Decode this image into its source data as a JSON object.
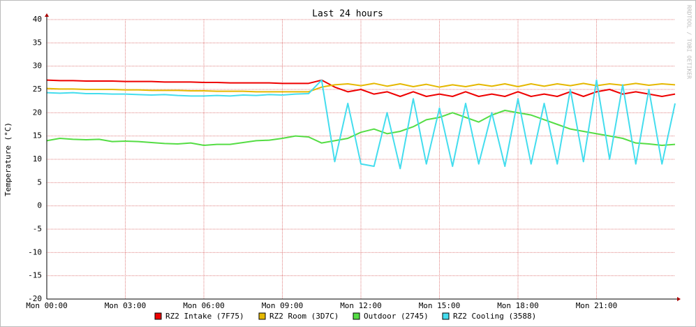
{
  "chart_data": {
    "type": "line",
    "title": "Last 24 hours",
    "y_label": "Temperature (°C)",
    "watermark": "RRDTOOL / TOBI OETIKER",
    "x": [
      0,
      0.5,
      1,
      1.5,
      2,
      2.5,
      3,
      3.5,
      4,
      4.5,
      5,
      5.5,
      6,
      6.5,
      7,
      7.5,
      8,
      8.5,
      9,
      9.5,
      10,
      10.5,
      11,
      11.5,
      12,
      12.5,
      13,
      13.5,
      14,
      14.5,
      15,
      15.5,
      16,
      16.5,
      17,
      17.5,
      18,
      18.5,
      19,
      19.5,
      20,
      20.5,
      21,
      21.5,
      22,
      22.5,
      23,
      23.5,
      24
    ],
    "xlim": [
      0,
      24
    ],
    "xticks": [
      {
        "value": 0,
        "label": "Mon 00:00"
      },
      {
        "value": 3,
        "label": "Mon 03:00"
      },
      {
        "value": 6,
        "label": "Mon 06:00"
      },
      {
        "value": 9,
        "label": "Mon 09:00"
      },
      {
        "value": 12,
        "label": "Mon 12:00"
      },
      {
        "value": 15,
        "label": "Mon 15:00"
      },
      {
        "value": 18,
        "label": "Mon 18:00"
      },
      {
        "value": 21,
        "label": "Mon 21:00"
      }
    ],
    "ylim": [
      -20,
      40
    ],
    "yticks": [
      -20,
      -15,
      -10,
      -5,
      0,
      5,
      10,
      15,
      20,
      25,
      30,
      35,
      40
    ],
    "grid": true,
    "series": [
      {
        "name": "RZ2 Intake (7F75)",
        "color": "#ee0000",
        "values": [
          27,
          26.9,
          26.9,
          26.8,
          26.8,
          26.8,
          26.7,
          26.7,
          26.7,
          26.6,
          26.6,
          26.6,
          26.5,
          26.5,
          26.4,
          26.4,
          26.4,
          26.4,
          26.3,
          26.3,
          26.3,
          27,
          25.5,
          24.5,
          25,
          24,
          24.5,
          23.5,
          24.5,
          23.5,
          24,
          23.5,
          24.5,
          23.5,
          24,
          23.5,
          24.5,
          23.5,
          24,
          23.5,
          24.5,
          23.5,
          24.5,
          25,
          24,
          24.5,
          24,
          23.5,
          24
        ]
      },
      {
        "name": "RZ2 Room (3D7C)",
        "color": "#e5b800",
        "values": [
          25.2,
          25.1,
          25.1,
          25,
          25,
          25,
          24.9,
          24.9,
          24.8,
          24.8,
          24.8,
          24.7,
          24.7,
          24.6,
          24.6,
          24.6,
          24.5,
          24.5,
          24.5,
          24.5,
          24.5,
          25.5,
          26,
          26.2,
          25.8,
          26.3,
          25.7,
          26.2,
          25.6,
          26.1,
          25.5,
          26,
          25.6,
          26.1,
          25.7,
          26.2,
          25.6,
          26.2,
          25.7,
          26.2,
          25.8,
          26.3,
          25.8,
          26.2,
          25.9,
          26.3,
          25.9,
          26.2,
          26
        ]
      },
      {
        "name": "Outdoor (2745)",
        "color": "#55dd44",
        "values": [
          14,
          14.5,
          14.3,
          14.2,
          14.3,
          13.8,
          13.9,
          13.8,
          13.6,
          13.4,
          13.3,
          13.5,
          13,
          13.2,
          13.2,
          13.6,
          14,
          14.1,
          14.5,
          15,
          14.8,
          13.5,
          14,
          14.5,
          15.8,
          16.5,
          15.5,
          16,
          17,
          18.5,
          19,
          20,
          19,
          18,
          19.5,
          20.5,
          20,
          19.5,
          18.5,
          17.5,
          16.5,
          16,
          15.5,
          15,
          14.5,
          13.5,
          13.3,
          13,
          13.2
        ]
      },
      {
        "name": "RZ2 Cooling (3588)",
        "color": "#44ddee",
        "values": [
          24.3,
          24.2,
          24.3,
          24.1,
          24.1,
          24,
          24,
          23.9,
          23.8,
          23.9,
          23.7,
          23.6,
          23.6,
          23.7,
          23.6,
          23.8,
          23.7,
          23.9,
          23.8,
          24,
          24.1,
          27,
          9.5,
          22,
          9,
          8.5,
          20,
          8,
          23,
          9,
          21,
          8.5,
          22,
          9,
          20,
          8.5,
          23,
          9,
          22,
          9,
          25,
          9.5,
          27,
          10,
          26,
          9,
          25,
          9,
          22
        ]
      }
    ]
  }
}
